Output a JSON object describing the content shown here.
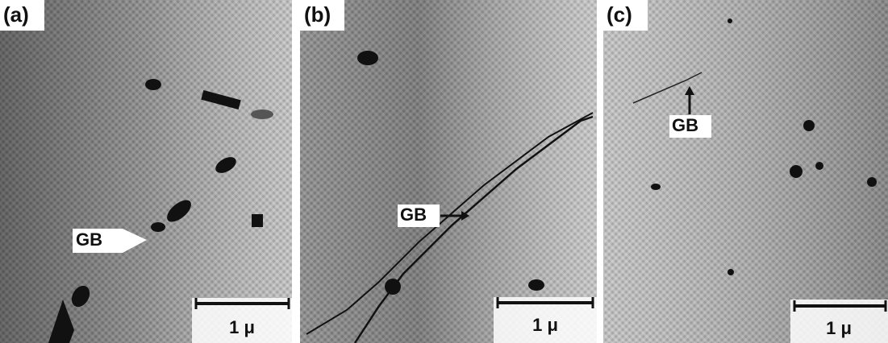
{
  "panels": [
    {
      "label": "(a)",
      "annotation": "GB",
      "scale_bar": "1 μ"
    },
    {
      "label": "(b)",
      "annotation": "GB",
      "scale_bar": "1 μ"
    },
    {
      "label": "(c)",
      "annotation": "GB",
      "scale_bar": "1 μ"
    }
  ]
}
